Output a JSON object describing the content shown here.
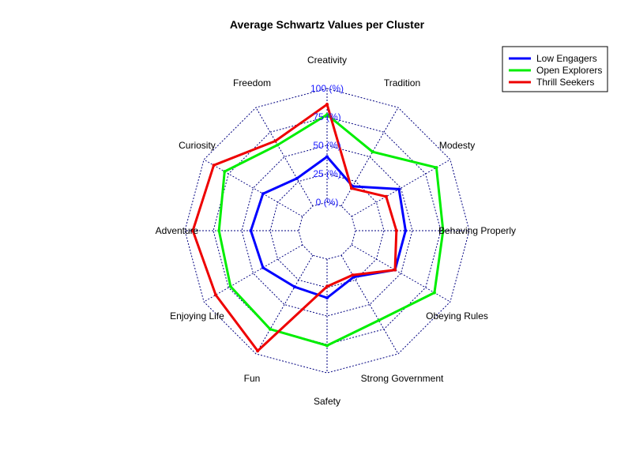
{
  "chart_data": {
    "type": "radar",
    "title": "Average Schwartz Values per Cluster",
    "axes": [
      "Creativity",
      "Tradition",
      "Modesty",
      "Behaving Properly",
      "Obeying Rules",
      "Strong Government",
      "Safety",
      "Fun",
      "Enjoying Life",
      "Adventure",
      "Curiosity",
      "Freedom"
    ],
    "ticks": [
      "0 (%)",
      "25 (%)",
      "50 (%)",
      "75 (%)",
      "100 (%)"
    ],
    "tick_values": [
      0,
      25,
      50,
      75,
      100
    ],
    "range": [
      0,
      100
    ],
    "tick_color": "#1a1aff",
    "grid_color": "#000080",
    "series": [
      {
        "name": "Low Engagers",
        "color": "#0000ff",
        "values": [
          40,
          20,
          48,
          44,
          44,
          22,
          34,
          32,
          40,
          42,
          40,
          28
        ]
      },
      {
        "name": "Open Explorers",
        "color": "#00ee00",
        "values": [
          77,
          55,
          86,
          77,
          84,
          66,
          76,
          75,
          73,
          70,
          79,
          62
        ]
      },
      {
        "name": "Thrill Seekers",
        "color": "#ee0000",
        "values": [
          86,
          18,
          35,
          36,
          44,
          20,
          24,
          97,
          88,
          93,
          90,
          66
        ]
      }
    ],
    "legend_position": "top-right",
    "grid": true
  }
}
